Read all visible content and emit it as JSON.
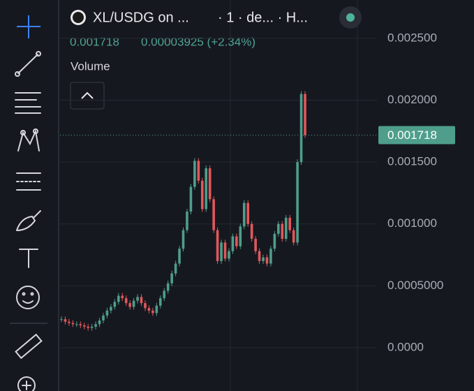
{
  "header": {
    "symbol": "XL/USDG on ...",
    "interval": "· 1 · de... · H...",
    "price": "0.001718",
    "change": "0.00003925 (+2.34%)",
    "indicator": "Volume"
  },
  "chart_data": {
    "type": "candle-line",
    "up_color": "#4e9e8b",
    "down_color": "#e0585b",
    "values": [
      0.00023,
      0.00021,
      0.0002,
      0.00019,
      0.00019,
      0.00018,
      0.00017,
      0.00016,
      0.00017,
      0.00019,
      0.00022,
      0.00026,
      0.0003,
      0.00033,
      0.00037,
      0.00042,
      0.0004,
      0.00036,
      0.00033,
      0.00038,
      0.00041,
      0.00036,
      0.00032,
      0.0003,
      0.00028,
      0.00034,
      0.0004,
      0.00046,
      0.00052,
      0.0006,
      0.00068,
      0.0008,
      0.00095,
      0.0011,
      0.0013,
      0.00151,
      0.00135,
      0.00112,
      0.00145,
      0.0012,
      0.00095,
      0.0007,
      0.00085,
      0.00072,
      0.00078,
      0.0009,
      0.00082,
      0.00098,
      0.00117,
      0.001,
      0.00088,
      0.00078,
      0.0007,
      0.00073,
      0.00068,
      0.0008,
      0.00092,
      0.001,
      0.00088,
      0.00105,
      0.00095,
      0.00085,
      0.0015,
      0.00205,
      0.001718
    ],
    "ylim": [
      -0.00035,
      0.00281
    ],
    "yticks": [
      {
        "value": 0,
        "label": "0.0000"
      },
      {
        "value": 0.0005,
        "label": "0.0005000"
      },
      {
        "value": 0.001,
        "label": "0.001000"
      },
      {
        "value": 0.0015,
        "label": "0.001500"
      },
      {
        "value": 0.002,
        "label": "0.002000"
      },
      {
        "value": 0.0025,
        "label": "0.002500"
      }
    ],
    "grid": true,
    "last_price": 0.001718,
    "last_price_label": "0.001718"
  }
}
